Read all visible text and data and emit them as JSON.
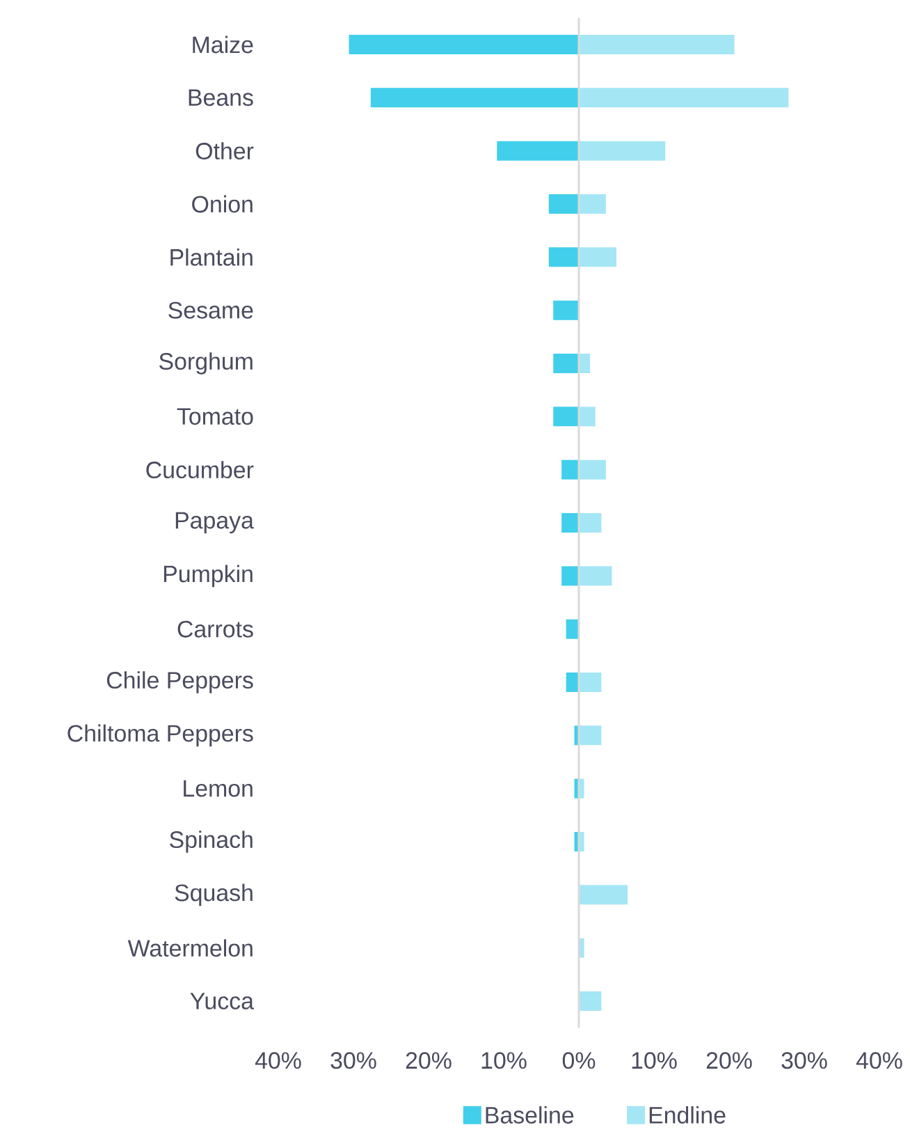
{
  "chart_data": [
    {
      "type": "bar",
      "orientation": "horizontal",
      "categories": [
        "Maize",
        "Beans",
        "Other",
        "Onion",
        "Plantain",
        "Sesame",
        "Sorghum",
        "Tomato",
        "Cucumber",
        "Papaya",
        "Pumpkin",
        "Carrots",
        "Chile Peppers",
        "Chiltoma Peppers",
        "Lemon",
        "Spinach",
        "Squash",
        "Watermelon",
        "Yucca"
      ],
      "series": [
        {
          "name": "Baseline",
          "color": "#41cfeb",
          "values": [
            30.6,
            27.7,
            10.9,
            4.0,
            4.0,
            3.4,
            3.4,
            3.4,
            2.3,
            2.3,
            2.3,
            1.7,
            1.7,
            0.6,
            0.6,
            0.6,
            0,
            0,
            0
          ]
        }
      ],
      "xlim": [
        40,
        0
      ],
      "xticks": [
        {
          "value": 40,
          "label": "40%"
        },
        {
          "value": 30,
          "label": "30%"
        },
        {
          "value": 20,
          "label": "20%"
        },
        {
          "value": 10,
          "label": "10%"
        },
        {
          "value": 0,
          "label": "0%"
        }
      ],
      "grid": false,
      "legend": "bottom"
    },
    {
      "type": "bar",
      "orientation": "horizontal",
      "categories": [
        null,
        null,
        null,
        null,
        null,
        null,
        null,
        null,
        null,
        null,
        null,
        null,
        null,
        null,
        null,
        null,
        null,
        null,
        null
      ],
      "series": [
        {
          "name": "Endline",
          "color": "#a5e6f5",
          "values": [
            20.7,
            27.9,
            11.5,
            3.6,
            5.0,
            0,
            1.5,
            2.2,
            3.6,
            3.0,
            4.4,
            0,
            3.0,
            3.0,
            0.7,
            0.7,
            6.5,
            0.7,
            3.0
          ]
        }
      ],
      "xlim": [
        0,
        40
      ],
      "xticks": [
        {
          "value": 0,
          "label": null
        },
        {
          "value": 10,
          "label": "10%"
        },
        {
          "value": 20,
          "label": "20%"
        },
        {
          "value": 30,
          "label": "30%"
        },
        {
          "value": 40,
          "label": "40%"
        }
      ],
      "tick_labels": "x",
      "grid": false,
      "legend": "bottom"
    }
  ]
}
